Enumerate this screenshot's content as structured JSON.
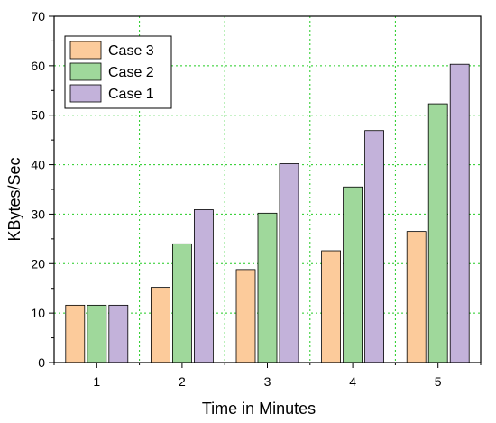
{
  "chart_data": {
    "type": "bar",
    "title": "",
    "xlabel": "Time in Minutes",
    "ylabel": "KBytes/Sec",
    "categories": [
      "1",
      "2",
      "3",
      "4",
      "5"
    ],
    "ylim": [
      0,
      70
    ],
    "yticks": [
      "0",
      "10",
      "20",
      "30",
      "40",
      "50",
      "60",
      "70"
    ],
    "grid": true,
    "legend_position": "top-left",
    "series": [
      {
        "name": "Case 3",
        "color": "#FCCB9B",
        "values": [
          11.6,
          15.2,
          18.8,
          22.6,
          26.5
        ]
      },
      {
        "name": "Case 2",
        "color": "#9FD89B",
        "values": [
          11.6,
          24.0,
          30.2,
          35.5,
          52.3
        ]
      },
      {
        "name": "Case 1",
        "color": "#C3B2DA",
        "values": [
          11.6,
          30.9,
          40.2,
          46.9,
          60.3
        ]
      }
    ],
    "colors": {
      "grid": "#22CC22",
      "bar_stroke": "#000000"
    }
  }
}
